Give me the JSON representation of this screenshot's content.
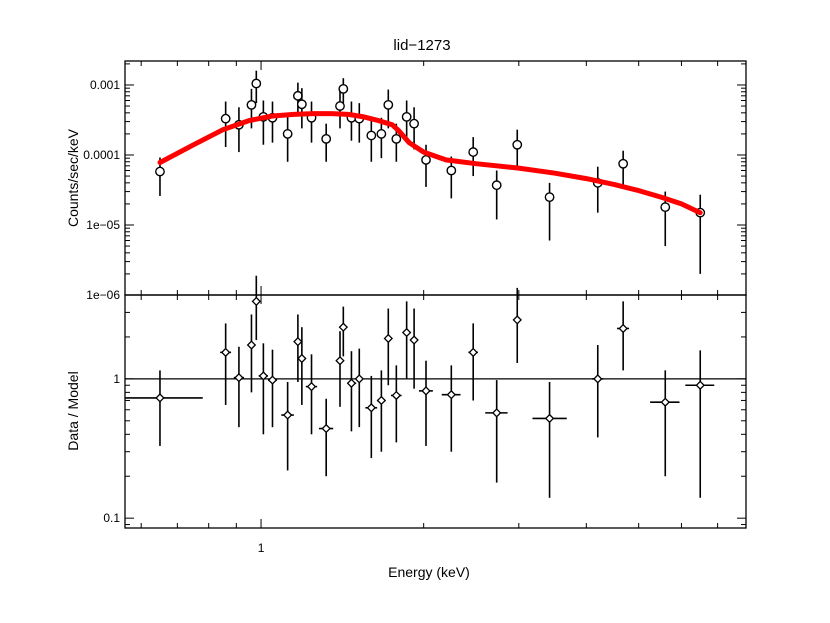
{
  "chart_data": {
    "type": "scatter",
    "title": "lid−1273",
    "xlabel": "Energy (keV)",
    "xscale": "log",
    "xlim": [
      0.56,
      7.9
    ],
    "x_tick_labels": [
      "1"
    ],
    "model_color": "#ff0000",
    "panels": [
      {
        "name": "spectrum",
        "ylabel": "Counts/sec/keV",
        "yscale": "log",
        "ylim": [
          1e-06,
          0.0022
        ],
        "y_tick_labels": [
          "1e−06",
          "1e−05",
          "0.0001",
          "0.001"
        ],
        "y_tick_values": [
          1e-06,
          1e-05,
          0.0001,
          0.001
        ],
        "points": [
          {
            "x": 0.65,
            "y": 5.8e-05,
            "ylo": 2.6e-05,
            "yhi": 9.2e-05
          },
          {
            "x": 0.86,
            "y": 0.00033,
            "ylo": 0.00013,
            "yhi": 0.00058
          },
          {
            "x": 0.91,
            "y": 0.00027,
            "ylo": 0.00011,
            "yhi": 0.00048
          },
          {
            "x": 0.96,
            "y": 0.00052,
            "ylo": 0.00024,
            "yhi": 0.00088
          },
          {
            "x": 0.98,
            "y": 0.00105,
            "ylo": 0.00055,
            "yhi": 0.0016
          },
          {
            "x": 1.01,
            "y": 0.00035,
            "ylo": 0.00014,
            "yhi": 0.0006
          },
          {
            "x": 1.05,
            "y": 0.00034,
            "ylo": 0.00015,
            "yhi": 0.00058
          },
          {
            "x": 1.12,
            "y": 0.0002,
            "ylo": 8e-05,
            "yhi": 0.00036
          },
          {
            "x": 1.17,
            "y": 0.0007,
            "ylo": 0.00036,
            "yhi": 0.00108
          },
          {
            "x": 1.19,
            "y": 0.00053,
            "ylo": 0.00024,
            "yhi": 0.0009
          },
          {
            "x": 1.24,
            "y": 0.00034,
            "ylo": 0.00015,
            "yhi": 0.00058
          },
          {
            "x": 1.32,
            "y": 0.00017,
            "ylo": 8e-05,
            "yhi": 0.00028
          },
          {
            "x": 1.4,
            "y": 0.0005,
            "ylo": 0.00024,
            "yhi": 0.00082
          },
          {
            "x": 1.42,
            "y": 0.00088,
            "ylo": 0.00055,
            "yhi": 0.00125
          },
          {
            "x": 1.47,
            "y": 0.00034,
            "ylo": 0.00016,
            "yhi": 0.00058
          },
          {
            "x": 1.52,
            "y": 0.00033,
            "ylo": 0.00015,
            "yhi": 0.00055
          },
          {
            "x": 1.6,
            "y": 0.00019,
            "ylo": 8e-05,
            "yhi": 0.00033
          },
          {
            "x": 1.67,
            "y": 0.0002,
            "ylo": 9e-05,
            "yhi": 0.00034
          },
          {
            "x": 1.72,
            "y": 0.00052,
            "ylo": 0.00024,
            "yhi": 0.00086
          },
          {
            "x": 1.78,
            "y": 0.00017,
            "ylo": 8e-05,
            "yhi": 0.00028
          },
          {
            "x": 1.86,
            "y": 0.00035,
            "ylo": 0.00016,
            "yhi": 0.0006
          },
          {
            "x": 1.92,
            "y": 0.00028,
            "ylo": 0.00012,
            "yhi": 0.00048
          },
          {
            "x": 2.02,
            "y": 8.5e-05,
            "ylo": 3.5e-05,
            "yhi": 0.00014
          },
          {
            "x": 2.25,
            "y": 6e-05,
            "ylo": 2.4e-05,
            "yhi": 9.5e-05
          },
          {
            "x": 2.47,
            "y": 0.00011,
            "ylo": 5e-05,
            "yhi": 0.00018
          },
          {
            "x": 2.73,
            "y": 3.7e-05,
            "ylo": 1.2e-05,
            "yhi": 6e-05
          },
          {
            "x": 2.98,
            "y": 0.00014,
            "ylo": 7e-05,
            "yhi": 0.00023
          },
          {
            "x": 3.42,
            "y": 2.5e-05,
            "ylo": 6e-06,
            "yhi": 4e-05
          },
          {
            "x": 4.2,
            "y": 4e-05,
            "ylo": 1.5e-05,
            "yhi": 6.8e-05
          },
          {
            "x": 4.68,
            "y": 7.5e-05,
            "ylo": 3.6e-05,
            "yhi": 0.000115
          },
          {
            "x": 5.6,
            "y": 1.8e-05,
            "ylo": 5e-06,
            "yhi": 3e-05
          },
          {
            "x": 6.5,
            "y": 1.5e-05,
            "ylo": 2e-06,
            "yhi": 2.7e-05
          }
        ],
        "model": {
          "name": "model",
          "x": [
            0.65,
            0.75,
            0.85,
            0.95,
            1.05,
            1.15,
            1.25,
            1.35,
            1.45,
            1.55,
            1.65,
            1.75,
            1.8,
            1.88,
            2.0,
            2.2,
            2.5,
            3.0,
            3.5,
            4.0,
            4.5,
            5.0,
            5.5,
            6.0,
            6.5
          ],
          "y": [
            7.8e-05,
            0.00014,
            0.00023,
            0.00031,
            0.00036,
            0.00038,
            0.00039,
            0.00039,
            0.00038,
            0.00035,
            0.00031,
            0.00027,
            0.00022,
            0.00015,
            0.00011,
            8.5e-05,
            7.5e-05,
            6.5e-05,
            5.5e-05,
            4.6e-05,
            3.8e-05,
            3.1e-05,
            2.5e-05,
            2e-05,
            1.5e-05
          ]
        }
      },
      {
        "name": "ratio",
        "ylabel": "Data / Model",
        "yscale": "log",
        "ylim": [
          0.085,
          4.0
        ],
        "y_tick_labels": [
          "0.1",
          "1"
        ],
        "y_tick_values": [
          0.1,
          1
        ],
        "reference_line": 1,
        "points": [
          {
            "x": 0.65,
            "y": 0.73,
            "ylo": 0.33,
            "yhi": 1.15,
            "xlo": 0.56,
            "xhi": 0.78
          },
          {
            "x": 0.86,
            "y": 1.55,
            "ylo": 0.65,
            "yhi": 2.5,
            "xlo": 0.84,
            "xhi": 0.88
          },
          {
            "x": 0.91,
            "y": 1.02,
            "ylo": 0.45,
            "yhi": 1.7,
            "xlo": 0.89,
            "xhi": 0.93
          },
          {
            "x": 0.96,
            "y": 1.75,
            "ylo": 0.8,
            "yhi": 2.9,
            "xlo": 0.95,
            "xhi": 0.97
          },
          {
            "x": 0.98,
            "y": 3.6,
            "ylo": 1.9,
            "yhi": 5.5,
            "xlo": 0.97,
            "xhi": 0.99
          },
          {
            "x": 1.01,
            "y": 1.05,
            "ylo": 0.4,
            "yhi": 1.8,
            "xlo": 0.99,
            "xhi": 1.03
          },
          {
            "x": 1.05,
            "y": 0.98,
            "ylo": 0.45,
            "yhi": 1.62,
            "xlo": 1.03,
            "xhi": 1.07
          },
          {
            "x": 1.12,
            "y": 0.55,
            "ylo": 0.22,
            "yhi": 0.95,
            "xlo": 1.09,
            "xhi": 1.15
          },
          {
            "x": 1.17,
            "y": 1.85,
            "ylo": 0.95,
            "yhi": 2.9,
            "xlo": 1.16,
            "xhi": 1.18
          },
          {
            "x": 1.19,
            "y": 1.4,
            "ylo": 0.65,
            "yhi": 2.35,
            "xlo": 1.18,
            "xhi": 1.21
          },
          {
            "x": 1.24,
            "y": 0.88,
            "ylo": 0.4,
            "yhi": 1.5,
            "xlo": 1.21,
            "xhi": 1.27
          },
          {
            "x": 1.32,
            "y": 0.44,
            "ylo": 0.2,
            "yhi": 0.72,
            "xlo": 1.28,
            "xhi": 1.36
          },
          {
            "x": 1.4,
            "y": 1.35,
            "ylo": 0.63,
            "yhi": 2.2,
            "xlo": 1.38,
            "xhi": 1.41
          },
          {
            "x": 1.42,
            "y": 2.35,
            "ylo": 1.45,
            "yhi": 3.3,
            "xlo": 1.41,
            "xhi": 1.44
          },
          {
            "x": 1.47,
            "y": 0.93,
            "ylo": 0.42,
            "yhi": 1.58,
            "xlo": 1.45,
            "xhi": 1.5
          },
          {
            "x": 1.52,
            "y": 1.0,
            "ylo": 0.45,
            "yhi": 1.65,
            "xlo": 1.5,
            "xhi": 1.54
          },
          {
            "x": 1.6,
            "y": 0.62,
            "ylo": 0.27,
            "yhi": 1.05,
            "xlo": 1.56,
            "xhi": 1.64
          },
          {
            "x": 1.67,
            "y": 0.7,
            "ylo": 0.3,
            "yhi": 1.15,
            "xlo": 1.64,
            "xhi": 1.7
          },
          {
            "x": 1.72,
            "y": 1.95,
            "ylo": 0.9,
            "yhi": 3.2,
            "xlo": 1.7,
            "xhi": 1.74
          },
          {
            "x": 1.78,
            "y": 0.76,
            "ylo": 0.35,
            "yhi": 1.25,
            "xlo": 1.74,
            "xhi": 1.82
          },
          {
            "x": 1.86,
            "y": 2.15,
            "ylo": 1.0,
            "yhi": 3.6,
            "xlo": 1.84,
            "xhi": 1.88
          },
          {
            "x": 1.92,
            "y": 1.9,
            "ylo": 0.85,
            "yhi": 3.2,
            "xlo": 1.9,
            "xhi": 1.94
          },
          {
            "x": 2.02,
            "y": 0.82,
            "ylo": 0.33,
            "yhi": 1.35,
            "xlo": 1.96,
            "xhi": 2.08
          },
          {
            "x": 2.25,
            "y": 0.77,
            "ylo": 0.3,
            "yhi": 1.25,
            "xlo": 2.16,
            "xhi": 2.34
          },
          {
            "x": 2.47,
            "y": 1.55,
            "ylo": 0.7,
            "yhi": 2.5,
            "xlo": 2.42,
            "xhi": 2.52
          },
          {
            "x": 2.73,
            "y": 0.57,
            "ylo": 0.18,
            "yhi": 0.98,
            "xlo": 2.6,
            "xhi": 2.86
          },
          {
            "x": 2.98,
            "y": 2.65,
            "ylo": 1.3,
            "yhi": 4.5,
            "xlo": 2.94,
            "xhi": 3.02
          },
          {
            "x": 3.42,
            "y": 0.52,
            "ylo": 0.14,
            "yhi": 0.95,
            "xlo": 3.18,
            "xhi": 3.68
          },
          {
            "x": 4.2,
            "y": 1.0,
            "ylo": 0.38,
            "yhi": 1.75,
            "xlo": 4.1,
            "xhi": 4.3
          },
          {
            "x": 4.68,
            "y": 2.3,
            "ylo": 1.15,
            "yhi": 3.6,
            "xlo": 4.56,
            "xhi": 4.8
          },
          {
            "x": 5.6,
            "y": 0.68,
            "ylo": 0.2,
            "yhi": 1.15,
            "xlo": 5.25,
            "xhi": 5.95
          },
          {
            "x": 6.5,
            "y": 0.9,
            "ylo": 0.14,
            "yhi": 1.6,
            "xlo": 6.1,
            "xhi": 6.9
          }
        ]
      }
    ]
  }
}
